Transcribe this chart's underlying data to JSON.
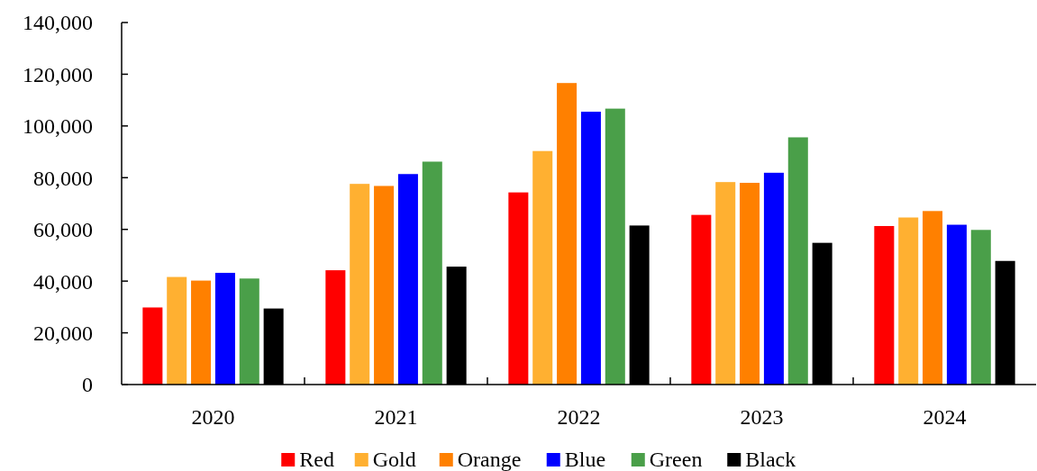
{
  "chart_data": {
    "type": "bar",
    "categories": [
      "2020",
      "2021",
      "2022",
      "2023",
      "2024"
    ],
    "series": [
      {
        "name": "Red",
        "color": "#ff0000",
        "values": [
          29800,
          44200,
          74300,
          65600,
          61300
        ]
      },
      {
        "name": "Gold",
        "color": "#ffb031",
        "values": [
          41600,
          77600,
          90300,
          78300,
          64600
        ]
      },
      {
        "name": "Orange",
        "color": "#ff8000",
        "values": [
          40200,
          76800,
          116600,
          78000,
          67100
        ]
      },
      {
        "name": "Blue",
        "color": "#0000ff",
        "values": [
          43200,
          81400,
          105500,
          81900,
          61800
        ]
      },
      {
        "name": "Green",
        "color": "#4a9f49",
        "values": [
          41000,
          86200,
          106700,
          95600,
          59800
        ]
      },
      {
        "name": "Black",
        "color": "#000000",
        "values": [
          29400,
          45600,
          61500,
          54800,
          47800
        ]
      }
    ],
    "ylim": [
      0,
      140000
    ],
    "yticks": [
      {
        "value": 0,
        "label": "0"
      },
      {
        "value": 20000,
        "label": "20,000"
      },
      {
        "value": 40000,
        "label": "40,000"
      },
      {
        "value": 60000,
        "label": "60,000"
      },
      {
        "value": 80000,
        "label": "80,000"
      },
      {
        "value": 100000,
        "label": "100,000"
      },
      {
        "value": 120000,
        "label": "120,000"
      },
      {
        "value": 140000,
        "label": "140,000"
      }
    ],
    "grid": false,
    "legend": "bottom"
  }
}
